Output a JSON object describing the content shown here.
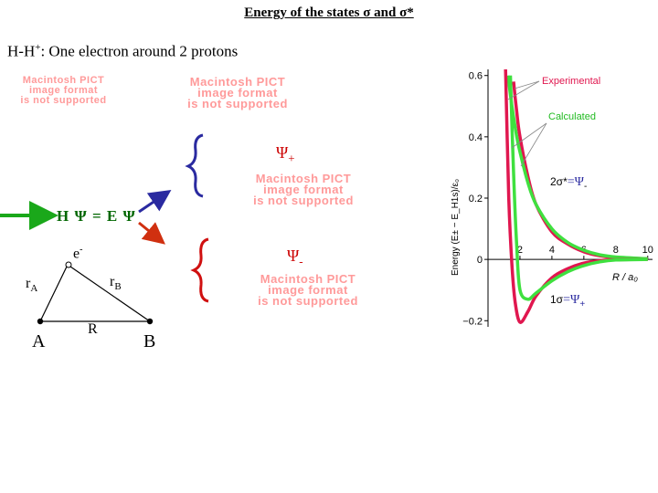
{
  "title": "Energy of the states σ and σ*",
  "subtitle_prefix": "H-H",
  "subtitle_sup": "+",
  "subtitle_rest": ": One electron around 2 protons",
  "placeholders": {
    "p1": [
      "Macintosh PICT",
      "image format",
      "is not supported"
    ],
    "p2": [
      "Macintosh PICT",
      "image format",
      "is not supported"
    ],
    "p3": [
      "Macintosh PICT",
      "image format",
      "is not supported"
    ],
    "p4": [
      "Macintosh PICT",
      "image format",
      "is not supported"
    ]
  },
  "psi_plus": "Ψ",
  "psi_plus_sub": "+",
  "psi_minus": "Ψ",
  "psi_minus_sub": "-",
  "schrodinger": "H Ψ = E Ψ",
  "electron": "e",
  "electron_sup": "-",
  "rA_main": "r",
  "rA_sub": "A",
  "rB_main": "r",
  "rB_sub": "B",
  "R_label": "R",
  "A_label": "A",
  "B_label": "B",
  "colors": {
    "experimental": "#e0174f",
    "calculated": "#3fe03f",
    "arrow_green": "#1aa81a",
    "arrow_blue": "#2a2aa0",
    "arrow_red": "#d03010",
    "brace_blue": "#2a2aa0",
    "brace_red": "#d01010"
  },
  "chart_data": {
    "type": "line",
    "ylabel": "Energy (E± − E_H1s)/ε₀",
    "xlabel": "R / a₀",
    "xlim": [
      0,
      10.3
    ],
    "ylim": [
      -0.22,
      0.62
    ],
    "x_ticks": [
      "2",
      "4",
      "6",
      "8",
      "10"
    ],
    "y_ticks": [
      "0.6",
      "0.4",
      "0.2",
      "0",
      "−0.2"
    ],
    "series": [
      {
        "name": "Experimental",
        "state": "sigma_star",
        "x": [
          1.6,
          1.8,
          2.0,
          2.5,
          3.0,
          4.0,
          5.0,
          6.0,
          7.0,
          8.0,
          10.0
        ],
        "y": [
          0.58,
          0.48,
          0.4,
          0.27,
          0.18,
          0.09,
          0.05,
          0.025,
          0.012,
          0.006,
          0.002
        ]
      },
      {
        "name": "Calculated",
        "state": "sigma_star",
        "x": [
          1.25,
          1.5,
          1.8,
          2.0,
          2.5,
          3.0,
          4.0,
          5.0,
          6.0,
          7.0,
          8.0,
          10.0
        ],
        "y": [
          0.6,
          0.5,
          0.4,
          0.35,
          0.25,
          0.18,
          0.1,
          0.055,
          0.03,
          0.015,
          0.008,
          0.002
        ]
      },
      {
        "name": "Experimental",
        "state": "sigma",
        "x": [
          1.1,
          1.3,
          1.5,
          1.7,
          2.0,
          2.5,
          3.0,
          4.0,
          5.0,
          6.0,
          7.0,
          8.0,
          10.0
        ],
        "y": [
          0.62,
          0.2,
          -0.02,
          -0.14,
          -0.205,
          -0.17,
          -0.12,
          -0.06,
          -0.03,
          -0.012,
          -0.004,
          -0.001,
          0.0
        ]
      },
      {
        "name": "Calculated",
        "state": "sigma",
        "x": [
          1.4,
          1.6,
          1.8,
          2.0,
          2.5,
          3.0,
          4.0,
          5.0,
          6.0,
          7.0,
          8.0,
          10.0
        ],
        "y": [
          0.6,
          0.28,
          0.04,
          -0.1,
          -0.13,
          -0.11,
          -0.07,
          -0.04,
          -0.02,
          -0.008,
          -0.002,
          0.0
        ]
      }
    ],
    "annotations": [
      "Experimental",
      "Calculated"
    ],
    "state_labels": {
      "upper": "2σ*",
      "upper_eq": "=Ψ",
      "upper_sub": "-",
      "lower": "1σ",
      "lower_eq": "=Ψ",
      "lower_sub": "+"
    }
  }
}
